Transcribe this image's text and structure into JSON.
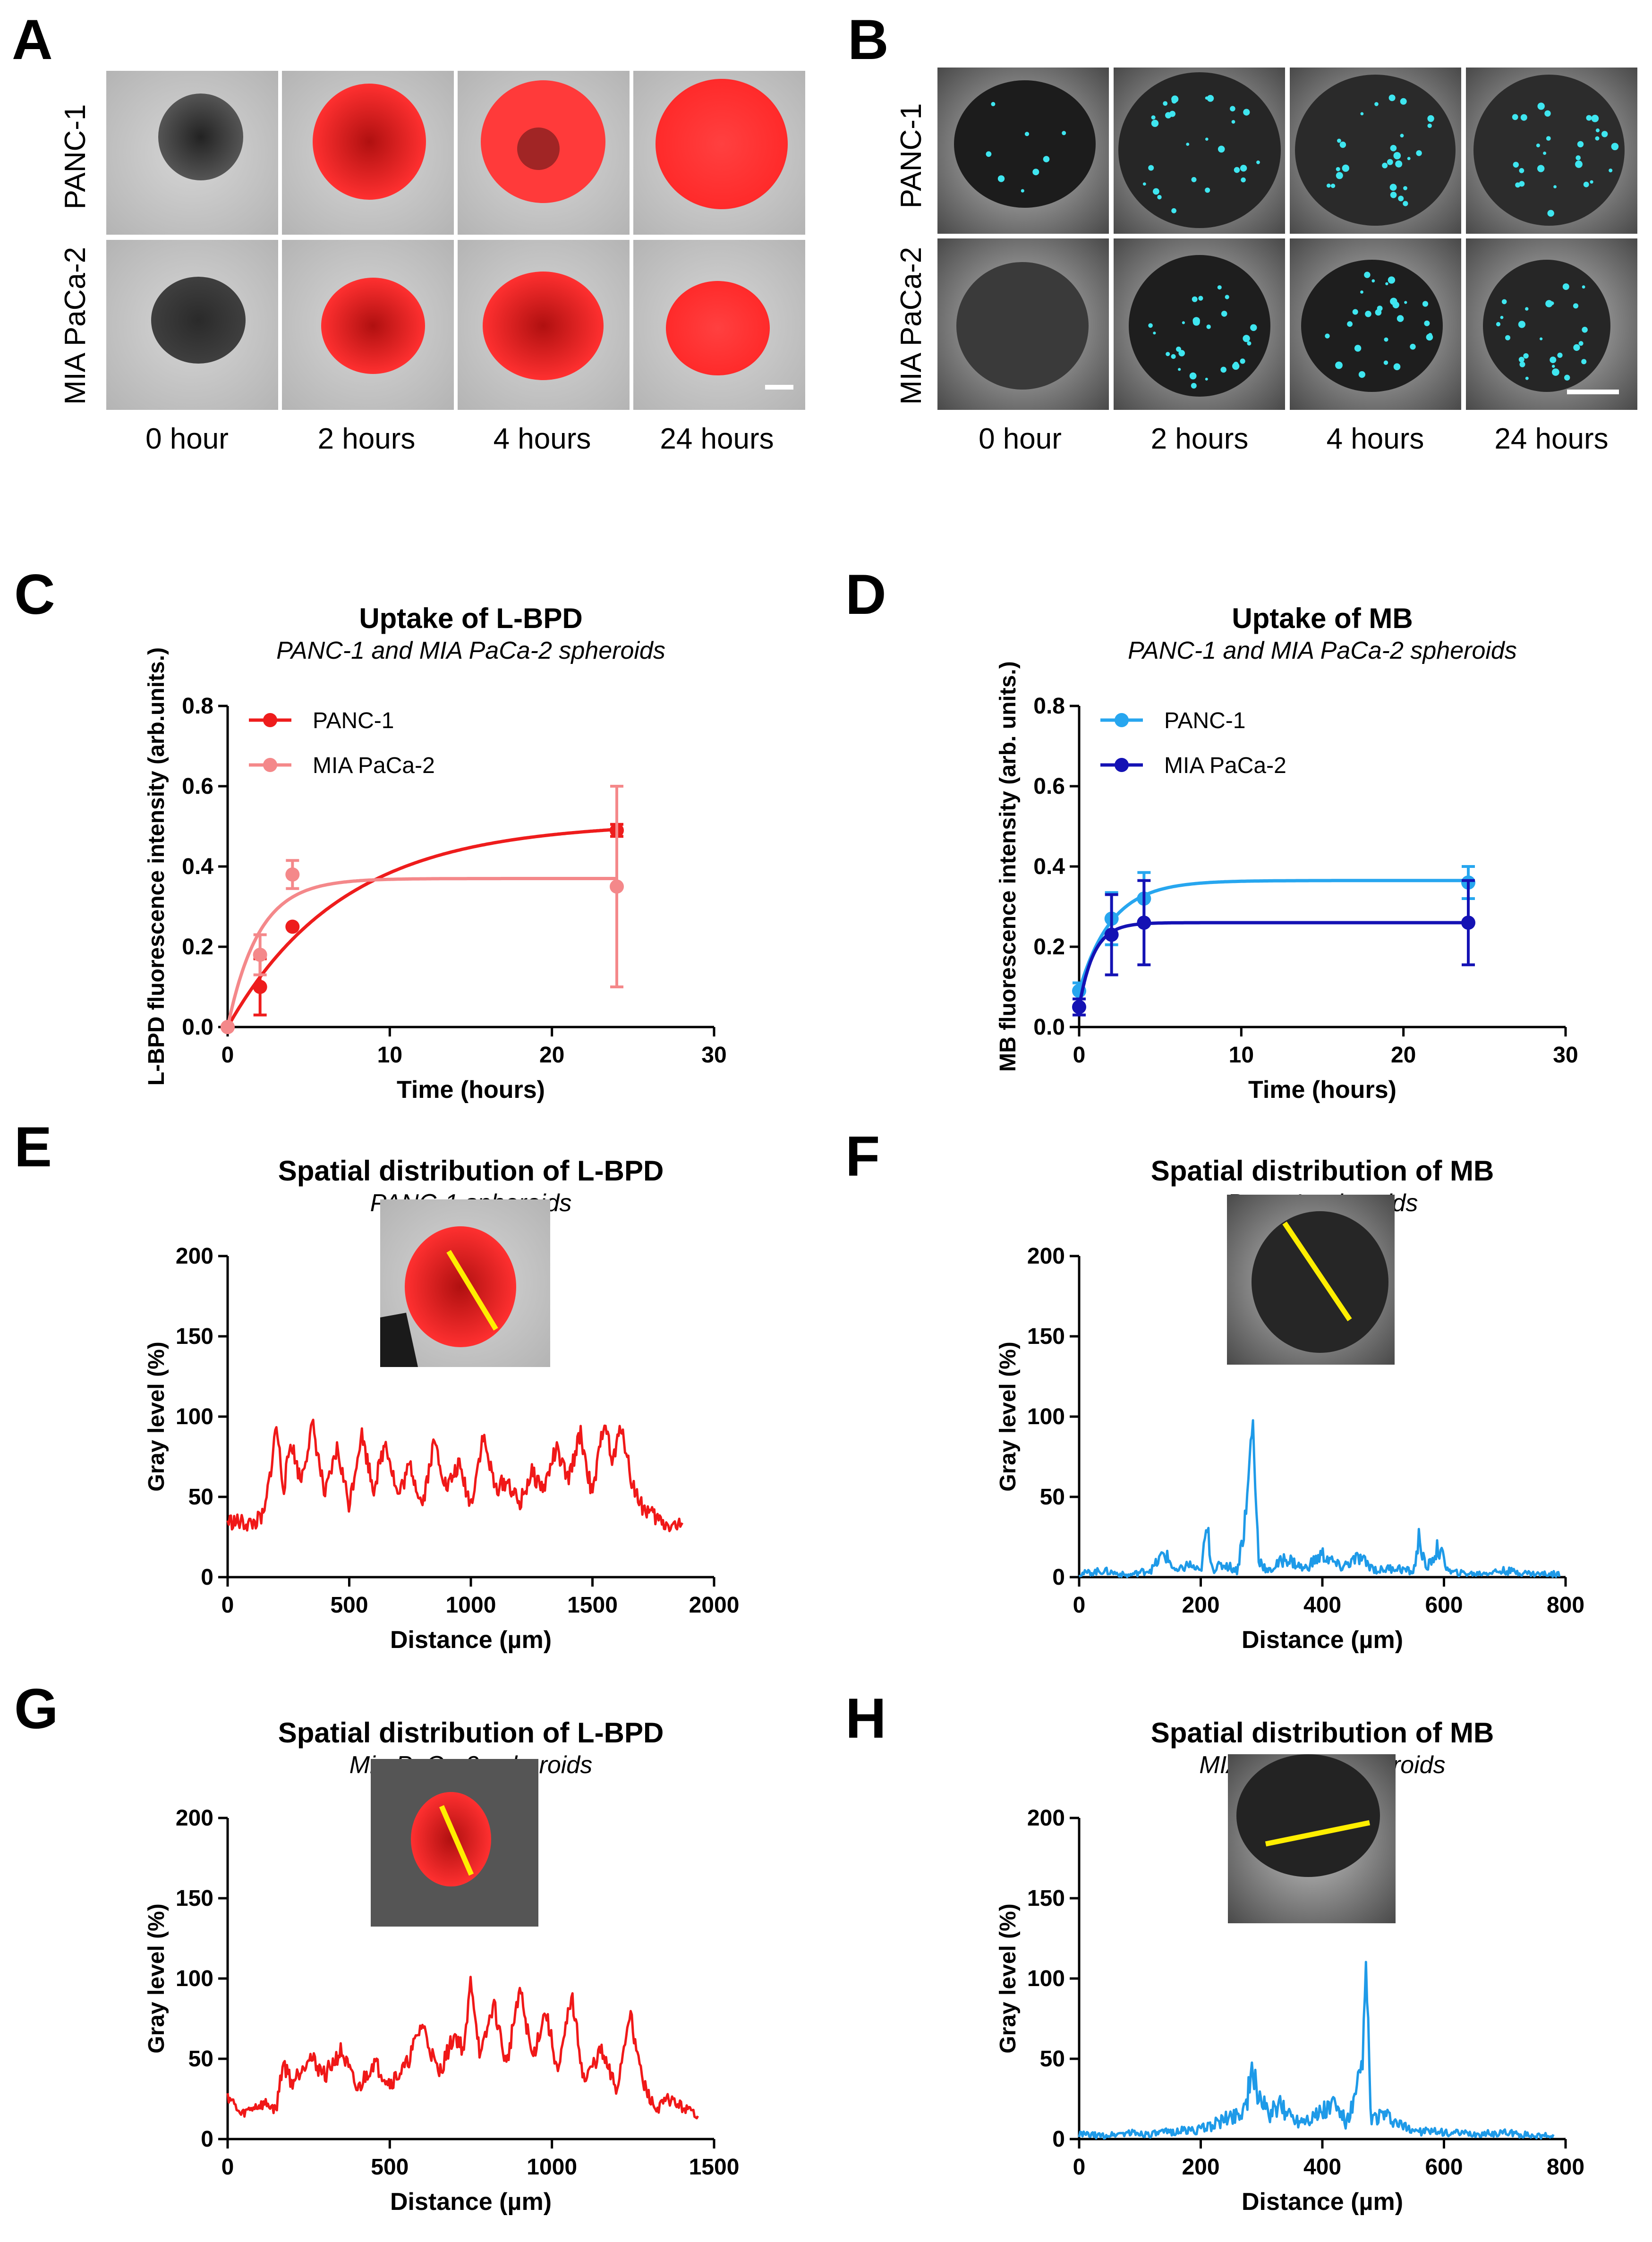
{
  "colors": {
    "lbpd_panc": "#ee1c1c",
    "lbpd_mia": "#f4888a",
    "mb_panc": "#27a6ef",
    "mb_mia": "#1412b4",
    "red_trace": "#f01818",
    "blue_trace": "#1e9ae8",
    "axis": "#000000",
    "scalebar": "#ffffff",
    "lineprofile": "#ffee00"
  },
  "panel_A": {
    "letter": "A",
    "rows": [
      "PANC-1",
      "MIA PaCa-2"
    ],
    "cols": [
      "0 hour",
      "2 hours",
      "4 hours",
      "24 hours"
    ]
  },
  "panel_B": {
    "letter": "B",
    "rows": [
      "PANC-1",
      "MIA PaCa-2"
    ],
    "cols": [
      "0 hour",
      "2 hours",
      "4 hours",
      "24 hours"
    ]
  },
  "chart_data": [
    {
      "id": "C",
      "letter": "C",
      "type": "scatter",
      "title": "Uptake of L-BPD",
      "subtitle": "PANC-1 and MIA PaCa-2 spheroids",
      "xlabel": "Time (hours)",
      "ylabel": "L-BPD fluorescence intensity (arb.units.)",
      "xlim": [
        0,
        30
      ],
      "ylim": [
        0,
        0.8
      ],
      "xticks": [
        0,
        10,
        20,
        30
      ],
      "xtick_labels": [
        "0",
        "10",
        "20",
        "30"
      ],
      "yticks": [
        0,
        0.2,
        0.4,
        0.6,
        0.8
      ],
      "ytick_labels": [
        "0.0",
        "0.2",
        "0.4",
        "0.6",
        "0.8"
      ],
      "legend": "top-left",
      "series": [
        {
          "name": "PANC-1",
          "color": "#ee1c1c",
          "x": [
            0,
            2,
            4,
            24
          ],
          "y": [
            0.0,
            0.1,
            0.25,
            0.49
          ],
          "err": [
            0.0,
            0.07,
            0.0,
            0.015
          ],
          "fit": {
            "plateau": 0.51,
            "k": 0.14
          }
        },
        {
          "name": "MIA PaCa-2",
          "color": "#f4888a",
          "x": [
            0,
            2,
            4,
            24
          ],
          "y": [
            0.0,
            0.18,
            0.38,
            0.35
          ],
          "err": [
            0.0,
            0.05,
            0.035,
            0.25
          ],
          "fit": {
            "plateau": 0.37,
            "k": 0.52
          }
        }
      ]
    },
    {
      "id": "D",
      "letter": "D",
      "type": "scatter",
      "title": "Uptake of MB",
      "subtitle": "PANC-1 and MIA PaCa-2 spheroids",
      "xlabel": "Time (hours)",
      "ylabel": "MB fluorescence intensity (arb. units.)",
      "xlim": [
        0,
        30
      ],
      "ylim": [
        0,
        0.8
      ],
      "xticks": [
        0,
        10,
        20,
        30
      ],
      "xtick_labels": [
        "0",
        "10",
        "20",
        "30"
      ],
      "yticks": [
        0,
        0.2,
        0.4,
        0.6,
        0.8
      ],
      "ytick_labels": [
        "0.0",
        "0.2",
        "0.4",
        "0.6",
        "0.8"
      ],
      "legend": "top-left",
      "series": [
        {
          "name": "PANC-1",
          "color": "#27a6ef",
          "x": [
            0,
            2,
            4,
            24
          ],
          "y": [
            0.09,
            0.27,
            0.32,
            0.36
          ],
          "err": [
            0.02,
            0.065,
            0.065,
            0.04
          ],
          "fit": {
            "y0": 0.09,
            "plateau": 0.365,
            "k": 0.5
          }
        },
        {
          "name": "MIA PaCa-2",
          "color": "#1412b4",
          "x": [
            0,
            2,
            4,
            24
          ],
          "y": [
            0.05,
            0.23,
            0.26,
            0.26
          ],
          "err": [
            0.02,
            0.1,
            0.105,
            0.105
          ],
          "fit": {
            "y0": 0.05,
            "plateau": 0.26,
            "k": 1.1
          }
        }
      ]
    },
    {
      "id": "E",
      "letter": "E",
      "type": "line",
      "title": "Spatial distribution of L-BPD",
      "subtitle": "PANC-1 spheroids",
      "xlabel": "Distance (µm)",
      "ylabel": "Gray level (%)",
      "xlim": [
        0,
        2000
      ],
      "ylim": [
        0,
        200
      ],
      "xticks": [
        0,
        500,
        1000,
        1500,
        2000
      ],
      "xtick_labels": [
        "0",
        "500",
        "1000",
        "1500",
        "2000"
      ],
      "yticks": [
        0,
        50,
        100,
        150,
        200
      ],
      "ytick_labels": [
        "0",
        "50",
        "100",
        "150",
        "200"
      ],
      "series": [
        {
          "name": "profile",
          "color": "#f01818",
          "x": [
            0,
            100,
            150,
            180,
            200,
            230,
            260,
            300,
            350,
            400,
            450,
            500,
            550,
            600,
            650,
            700,
            750,
            800,
            850,
            900,
            950,
            1000,
            1050,
            1100,
            1150,
            1200,
            1250,
            1300,
            1350,
            1400,
            1450,
            1500,
            1550,
            1580,
            1620,
            1660,
            1700,
            1750,
            1800,
            1870
          ],
          "y": [
            35,
            33,
            38,
            70,
            95,
            55,
            85,
            60,
            95,
            50,
            80,
            45,
            90,
            55,
            85,
            50,
            70,
            45,
            85,
            55,
            70,
            45,
            88,
            55,
            60,
            45,
            65,
            55,
            80,
            60,
            90,
            50,
            100,
            70,
            95,
            60,
            45,
            38,
            33,
            32
          ]
        }
      ]
    },
    {
      "id": "F",
      "letter": "F",
      "type": "line",
      "title": "Spatial distribution of MB",
      "subtitle": "Panc-1 spheroids",
      "xlabel": "Distance (µm)",
      "ylabel": "Gray level (%)",
      "xlim": [
        0,
        800
      ],
      "ylim": [
        0,
        200
      ],
      "xticks": [
        0,
        200,
        400,
        600,
        800
      ],
      "xtick_labels": [
        "0",
        "200",
        "400",
        "600",
        "800"
      ],
      "yticks": [
        0,
        50,
        100,
        150,
        200
      ],
      "ytick_labels": [
        "0",
        "50",
        "100",
        "150",
        "200"
      ],
      "series": [
        {
          "name": "profile",
          "color": "#1e9ae8",
          "x": [
            0,
            40,
            80,
            120,
            140,
            160,
            180,
            200,
            210,
            220,
            240,
            260,
            275,
            285,
            295,
            310,
            340,
            370,
            400,
            430,
            460,
            490,
            520,
            550,
            560,
            570,
            590,
            610,
            650,
            700,
            750,
            790
          ],
          "y": [
            2,
            4,
            1,
            5,
            15,
            3,
            8,
            3,
            30,
            5,
            8,
            4,
            40,
            100,
            12,
            3,
            12,
            5,
            14,
            6,
            12,
            4,
            6,
            3,
            26,
            4,
            18,
            3,
            2,
            4,
            2,
            2
          ]
        }
      ]
    },
    {
      "id": "G",
      "letter": "G",
      "type": "line",
      "title": "Spatial distribution of L-BPD",
      "subtitle": "Mia PaCa-2 spheroids",
      "xlabel": "Distance (µm)",
      "ylabel": "Gray level (%)",
      "xlim": [
        0,
        1500
      ],
      "ylim": [
        0,
        200
      ],
      "xticks": [
        0,
        500,
        1000,
        1500
      ],
      "xtick_labels": [
        "0",
        "500",
        "1000",
        "1500"
      ],
      "yticks": [
        0,
        50,
        100,
        150,
        200
      ],
      "ytick_labels": [
        "0",
        "50",
        "100",
        "150",
        "200"
      ],
      "series": [
        {
          "name": "profile",
          "color": "#f01818",
          "x": [
            0,
            40,
            80,
            120,
            150,
            170,
            200,
            250,
            300,
            350,
            400,
            450,
            500,
            550,
            600,
            650,
            700,
            730,
            750,
            780,
            820,
            860,
            900,
            940,
            980,
            1020,
            1060,
            1100,
            1150,
            1200,
            1240,
            1280,
            1320,
            1360,
            1400,
            1450
          ],
          "y": [
            28,
            15,
            20,
            22,
            18,
            48,
            35,
            52,
            40,
            55,
            30,
            48,
            35,
            45,
            72,
            40,
            65,
            55,
            100,
            50,
            85,
            45,
            95,
            50,
            80,
            40,
            90,
            35,
            55,
            30,
            80,
            35,
            18,
            25,
            20,
            15
          ]
        }
      ]
    },
    {
      "id": "H",
      "letter": "H",
      "type": "line",
      "title": "Spatial distribution of MB",
      "subtitle": "MIA PaCa-2 spheroids",
      "xlabel": "Distance (µm)",
      "ylabel": "Gray level (%)",
      "xlim": [
        0,
        800
      ],
      "ylim": [
        0,
        200
      ],
      "xticks": [
        0,
        200,
        400,
        600,
        800
      ],
      "xtick_labels": [
        "0",
        "200",
        "400",
        "600",
        "800"
      ],
      "yticks": [
        0,
        50,
        100,
        150,
        200
      ],
      "ytick_labels": [
        "0",
        "50",
        "100",
        "150",
        "200"
      ],
      "series": [
        {
          "name": "profile",
          "color": "#1e9ae8",
          "x": [
            0,
            40,
            80,
            120,
            160,
            200,
            240,
            270,
            285,
            295,
            310,
            330,
            360,
            390,
            420,
            440,
            455,
            465,
            472,
            480,
            500,
            530,
            560,
            600,
            650,
            700,
            750,
            780
          ],
          "y": [
            3,
            2,
            4,
            3,
            5,
            6,
            12,
            18,
            38,
            30,
            15,
            20,
            12,
            15,
            22,
            10,
            25,
            45,
            105,
            12,
            15,
            8,
            5,
            4,
            3,
            4,
            2,
            2
          ]
        }
      ]
    }
  ]
}
